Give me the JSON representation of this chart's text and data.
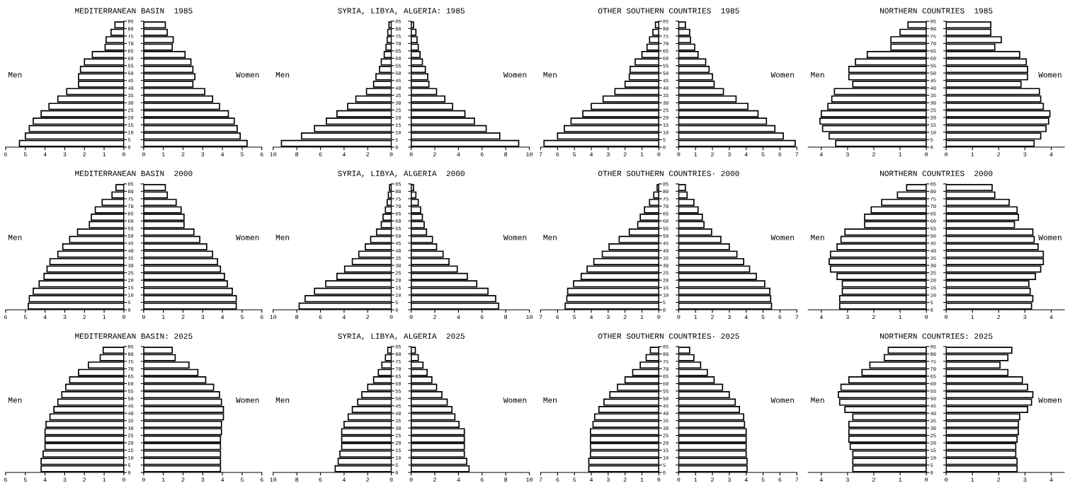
{
  "chart_data": [
    {
      "type": "bar",
      "orientation": "horizontal",
      "title": "MEDITERRANEAN BASIN  1985",
      "x": [
        82.5,
        77.5,
        72.5,
        67.5,
        62.5,
        57.5,
        52.5,
        47.5,
        42.5,
        37.5,
        32.5,
        27.5,
        22.5,
        17.5,
        12.5,
        7.5,
        2.5
      ],
      "ylim": [
        0,
        85
      ],
      "yticks": [
        0,
        5,
        10,
        15,
        20,
        25,
        30,
        35,
        40,
        45,
        50,
        55,
        60,
        65,
        70,
        75,
        80,
        85
      ],
      "xlim": [
        6,
        0
      ],
      "xticks": [
        6,
        5,
        4,
        3,
        2,
        1,
        0
      ],
      "series": [
        {
          "name": "Men",
          "color": "#ffffff",
          "values": [
            0.45,
            0.65,
            0.9,
            0.95,
            1.6,
            2.0,
            2.2,
            2.3,
            2.3,
            2.9,
            3.35,
            3.8,
            4.2,
            4.6,
            4.8,
            5.0,
            5.3
          ]
        }
      ]
    },
    {
      "type": "bar",
      "orientation": "horizontal",
      "x": [
        82.5,
        77.5,
        72.5,
        67.5,
        62.5,
        57.5,
        52.5,
        47.5,
        42.5,
        37.5,
        32.5,
        27.5,
        22.5,
        17.5,
        12.5,
        7.5,
        2.5
      ],
      "ylim": [
        0,
        85
      ],
      "yticks": [
        0,
        5,
        10,
        15,
        20,
        25,
        30,
        35,
        40,
        45,
        50,
        55,
        60,
        65,
        70,
        75,
        80,
        85
      ],
      "xlim": [
        0,
        6
      ],
      "xticks": [
        0,
        1,
        2,
        3,
        4,
        5,
        6
      ],
      "tick_labels": "x",
      "series": [
        {
          "name": "Women",
          "color": "#ffffff",
          "values": [
            1.1,
            1.2,
            1.5,
            1.45,
            2.1,
            2.4,
            2.5,
            2.6,
            2.5,
            3.1,
            3.5,
            3.85,
            4.3,
            4.6,
            4.75,
            4.9,
            5.25
          ]
        }
      ]
    },
    {
      "type": "bar",
      "orientation": "horizontal",
      "title": "SYRIA, LIBYA, ALGERIA: 1985",
      "x": [
        82.5,
        77.5,
        72.5,
        67.5,
        62.5,
        57.5,
        52.5,
        47.5,
        42.5,
        37.5,
        32.5,
        27.5,
        22.5,
        17.5,
        12.5,
        7.5,
        2.5
      ],
      "ylim": [
        0,
        85
      ],
      "yticks": [
        0,
        5,
        10,
        15,
        20,
        25,
        30,
        35,
        40,
        45,
        50,
        55,
        60,
        65,
        70,
        75,
        80,
        85
      ],
      "xlim": [
        10,
        0
      ],
      "xticks": [
        10,
        8,
        6,
        4,
        2,
        0
      ],
      "series": [
        {
          "name": "Men",
          "color": "#ffffff",
          "values": [
            0.2,
            0.3,
            0.35,
            0.45,
            0.6,
            0.85,
            1.0,
            1.3,
            1.5,
            2.1,
            3.0,
            3.7,
            4.6,
            5.5,
            6.5,
            7.6,
            9.3
          ]
        }
      ]
    },
    {
      "type": "bar",
      "orientation": "horizontal",
      "x": [
        82.5,
        77.5,
        72.5,
        67.5,
        62.5,
        57.5,
        52.5,
        47.5,
        42.5,
        37.5,
        32.5,
        27.5,
        22.5,
        17.5,
        12.5,
        7.5,
        2.5
      ],
      "ylim": [
        0,
        85
      ],
      "yticks": [
        0,
        5,
        10,
        15,
        20,
        25,
        30,
        35,
        40,
        45,
        50,
        55,
        60,
        65,
        70,
        75,
        80,
        85
      ],
      "xlim": [
        0,
        10
      ],
      "xticks": [
        0,
        2,
        4,
        6,
        8,
        10
      ],
      "tick_labels": "x",
      "series": [
        {
          "name": "Women",
          "color": "#ffffff",
          "values": [
            0.2,
            0.4,
            0.5,
            0.6,
            0.75,
            0.95,
            1.2,
            1.4,
            1.5,
            2.15,
            2.85,
            3.5,
            4.55,
            5.35,
            6.35,
            7.5,
            9.1
          ]
        }
      ]
    },
    {
      "type": "bar",
      "orientation": "horizontal",
      "title": "OTHER SOUTHERN COUNTRIES  1985",
      "x": [
        82.5,
        77.5,
        72.5,
        67.5,
        62.5,
        57.5,
        52.5,
        47.5,
        42.5,
        37.5,
        32.5,
        27.5,
        22.5,
        17.5,
        12.5,
        7.5,
        2.5
      ],
      "ylim": [
        0,
        85
      ],
      "yticks": [
        0,
        5,
        10,
        15,
        20,
        25,
        30,
        35,
        40,
        45,
        50,
        55,
        60,
        65,
        70,
        75,
        80,
        85
      ],
      "xlim": [
        7,
        0
      ],
      "xticks": [
        7,
        6,
        5,
        4,
        3,
        2,
        1,
        0
      ],
      "series": [
        {
          "name": "Men",
          "color": "#ffffff",
          "values": [
            0.2,
            0.35,
            0.55,
            0.7,
            1.0,
            1.4,
            1.7,
            1.75,
            2.0,
            2.6,
            3.3,
            4.0,
            4.5,
            5.2,
            5.6,
            6.0,
            6.8
          ]
        }
      ]
    },
    {
      "type": "bar",
      "orientation": "horizontal",
      "x": [
        82.5,
        77.5,
        72.5,
        67.5,
        62.5,
        57.5,
        52.5,
        47.5,
        42.5,
        37.5,
        32.5,
        27.5,
        22.5,
        17.5,
        12.5,
        7.5,
        2.5
      ],
      "ylim": [
        0,
        85
      ],
      "yticks": [
        0,
        5,
        10,
        15,
        20,
        25,
        30,
        35,
        40,
        45,
        50,
        55,
        60,
        65,
        70,
        75,
        80,
        85
      ],
      "xlim": [
        0,
        7
      ],
      "xticks": [
        0,
        1,
        2,
        3,
        4,
        5,
        6,
        7
      ],
      "tick_labels": "x",
      "series": [
        {
          "name": "Women",
          "color": "#ffffff",
          "values": [
            0.4,
            0.65,
            0.7,
            0.95,
            1.15,
            1.6,
            1.8,
            2.0,
            2.1,
            2.65,
            3.4,
            4.1,
            4.7,
            5.2,
            5.7,
            6.2,
            6.9
          ]
        }
      ]
    },
    {
      "type": "bar",
      "orientation": "horizontal",
      "title": "NORTHERN COUNTRIES  1985",
      "x": [
        82.5,
        77.5,
        72.5,
        67.5,
        62.5,
        57.5,
        52.5,
        47.5,
        42.5,
        37.5,
        32.5,
        27.5,
        22.5,
        17.5,
        12.5,
        7.5,
        2.5
      ],
      "ylim": [
        0,
        85
      ],
      "yticks": [
        0,
        5,
        10,
        15,
        20,
        25,
        30,
        35,
        40,
        45,
        50,
        55,
        60,
        65,
        70,
        75,
        80,
        85
      ],
      "xlim": [
        4.5,
        0
      ],
      "xticks": [
        4,
        3,
        2,
        1,
        0
      ],
      "series": [
        {
          "name": "Men",
          "color": "#ffffff",
          "values": [
            0.7,
            1.0,
            1.35,
            1.35,
            2.25,
            2.7,
            2.95,
            2.95,
            2.8,
            3.5,
            3.6,
            3.75,
            4.0,
            4.05,
            3.95,
            3.7,
            3.45
          ]
        }
      ]
    },
    {
      "type": "bar",
      "orientation": "horizontal",
      "x": [
        82.5,
        77.5,
        72.5,
        67.5,
        62.5,
        57.5,
        52.5,
        47.5,
        42.5,
        37.5,
        32.5,
        27.5,
        22.5,
        17.5,
        12.5,
        7.5,
        2.5
      ],
      "ylim": [
        0,
        85
      ],
      "yticks": [
        0,
        5,
        10,
        15,
        20,
        25,
        30,
        35,
        40,
        45,
        50,
        55,
        60,
        65,
        70,
        75,
        80,
        85
      ],
      "xlim": [
        0,
        4.5
      ],
      "xticks": [
        0,
        1,
        2,
        3,
        4
      ],
      "tick_labels": "x",
      "series": [
        {
          "name": "Women",
          "color": "#ffffff",
          "values": [
            1.7,
            1.7,
            2.1,
            1.85,
            2.8,
            3.05,
            3.1,
            3.1,
            2.85,
            3.55,
            3.6,
            3.7,
            3.95,
            3.9,
            3.8,
            3.6,
            3.35
          ]
        }
      ]
    },
    {
      "type": "bar",
      "orientation": "horizontal",
      "title": "MEDITERRANEAN BASIN  2000",
      "x": [
        82.5,
        77.5,
        72.5,
        67.5,
        62.5,
        57.5,
        52.5,
        47.5,
        42.5,
        37.5,
        32.5,
        27.5,
        22.5,
        17.5,
        12.5,
        7.5,
        2.5
      ],
      "ylim": [
        0,
        85
      ],
      "yticks": [
        0,
        5,
        10,
        15,
        20,
        25,
        30,
        35,
        40,
        45,
        50,
        55,
        60,
        65,
        70,
        75,
        80,
        85
      ],
      "xlim": [
        6,
        0
      ],
      "xticks": [
        6,
        5,
        4,
        3,
        2,
        1,
        0
      ],
      "series": [
        {
          "name": "Men",
          "color": "#ffffff",
          "values": [
            0.4,
            0.6,
            1.1,
            1.45,
            1.65,
            1.75,
            2.35,
            2.75,
            3.1,
            3.35,
            3.75,
            3.9,
            4.05,
            4.3,
            4.6,
            4.8,
            4.85
          ]
        }
      ]
    },
    {
      "type": "bar",
      "orientation": "horizontal",
      "x": [
        82.5,
        77.5,
        72.5,
        67.5,
        62.5,
        57.5,
        52.5,
        47.5,
        42.5,
        37.5,
        32.5,
        27.5,
        22.5,
        17.5,
        12.5,
        7.5,
        2.5
      ],
      "ylim": [
        0,
        85
      ],
      "yticks": [
        0,
        5,
        10,
        15,
        20,
        25,
        30,
        35,
        40,
        45,
        50,
        55,
        60,
        65,
        70,
        75,
        80,
        85
      ],
      "xlim": [
        0,
        6
      ],
      "xticks": [
        0,
        1,
        2,
        3,
        4,
        5,
        6
      ],
      "tick_labels": "x",
      "series": [
        {
          "name": "Women",
          "color": "#ffffff",
          "values": [
            1.1,
            1.2,
            1.65,
            1.9,
            2.05,
            2.05,
            2.55,
            2.85,
            3.2,
            3.5,
            3.75,
            3.9,
            4.1,
            4.25,
            4.5,
            4.7,
            4.7
          ]
        }
      ]
    },
    {
      "type": "bar",
      "orientation": "horizontal",
      "title": "SYRIA, LIBYA, ALGERIA  2000",
      "x": [
        82.5,
        77.5,
        72.5,
        67.5,
        62.5,
        57.5,
        52.5,
        47.5,
        42.5,
        37.5,
        32.5,
        27.5,
        22.5,
        17.5,
        12.5,
        7.5,
        2.5
      ],
      "ylim": [
        0,
        85
      ],
      "yticks": [
        0,
        5,
        10,
        15,
        20,
        25,
        30,
        35,
        40,
        45,
        50,
        55,
        60,
        65,
        70,
        75,
        80,
        85
      ],
      "xlim": [
        10,
        0
      ],
      "xticks": [
        10,
        8,
        6,
        4,
        2,
        0
      ],
      "series": [
        {
          "name": "Men",
          "color": "#ffffff",
          "values": [
            0.15,
            0.25,
            0.35,
            0.5,
            0.7,
            0.85,
            1.25,
            1.75,
            2.2,
            2.75,
            3.3,
            3.95,
            4.6,
            5.55,
            6.5,
            7.3,
            7.8
          ]
        }
      ]
    },
    {
      "type": "bar",
      "orientation": "horizontal",
      "x": [
        82.5,
        77.5,
        72.5,
        67.5,
        62.5,
        57.5,
        52.5,
        47.5,
        42.5,
        37.5,
        32.5,
        27.5,
        22.5,
        17.5,
        12.5,
        7.5,
        2.5
      ],
      "ylim": [
        0,
        85
      ],
      "yticks": [
        0,
        5,
        10,
        15,
        20,
        25,
        30,
        35,
        40,
        45,
        50,
        55,
        60,
        65,
        70,
        75,
        80,
        85
      ],
      "xlim": [
        0,
        10
      ],
      "xticks": [
        0,
        2,
        4,
        6,
        8,
        10
      ],
      "tick_labels": "x",
      "series": [
        {
          "name": "Women",
          "color": "#ffffff",
          "values": [
            0.2,
            0.4,
            0.6,
            0.8,
            0.95,
            1.1,
            1.3,
            1.8,
            2.15,
            2.7,
            3.2,
            3.9,
            4.75,
            5.55,
            6.5,
            7.15,
            7.4
          ]
        }
      ]
    },
    {
      "type": "bar",
      "orientation": "horizontal",
      "title": "OTHER SOUTHERN COUNTRIES· 2000",
      "x": [
        82.5,
        77.5,
        72.5,
        67.5,
        62.5,
        57.5,
        52.5,
        47.5,
        42.5,
        37.5,
        32.5,
        27.5,
        22.5,
        17.5,
        12.5,
        7.5,
        2.5
      ],
      "ylim": [
        0,
        85
      ],
      "yticks": [
        0,
        5,
        10,
        15,
        20,
        25,
        30,
        35,
        40,
        45,
        50,
        55,
        60,
        65,
        70,
        75,
        80,
        85
      ],
      "xlim": [
        7,
        0
      ],
      "xticks": [
        7,
        6,
        5,
        4,
        3,
        2,
        1,
        0
      ],
      "series": [
        {
          "name": "Men",
          "color": "#ffffff",
          "values": [
            0.1,
            0.3,
            0.55,
            0.85,
            1.1,
            1.25,
            1.75,
            2.35,
            2.95,
            3.35,
            3.85,
            4.25,
            4.6,
            5.05,
            5.4,
            5.45,
            5.55
          ]
        }
      ]
    },
    {
      "type": "bar",
      "orientation": "horizontal",
      "x": [
        82.5,
        77.5,
        72.5,
        67.5,
        62.5,
        57.5,
        52.5,
        47.5,
        42.5,
        37.5,
        32.5,
        27.5,
        22.5,
        17.5,
        12.5,
        7.5,
        2.5
      ],
      "ylim": [
        0,
        85
      ],
      "yticks": [
        0,
        5,
        10,
        15,
        20,
        25,
        30,
        35,
        40,
        45,
        50,
        55,
        60,
        65,
        70,
        75,
        80,
        85
      ],
      "xlim": [
        0,
        7
      ],
      "xticks": [
        0,
        1,
        2,
        3,
        4,
        5,
        6,
        7
      ],
      "tick_labels": "x",
      "series": [
        {
          "name": "Women",
          "color": "#ffffff",
          "values": [
            0.4,
            0.5,
            0.9,
            1.15,
            1.4,
            1.5,
            1.95,
            2.5,
            3.0,
            3.45,
            3.85,
            4.2,
            4.6,
            5.1,
            5.4,
            5.45,
            5.5
          ]
        }
      ]
    },
    {
      "type": "bar",
      "orientation": "horizontal",
      "title": "NORTHERN COUNTRIES  2000",
      "x": [
        82.5,
        77.5,
        72.5,
        67.5,
        62.5,
        57.5,
        52.5,
        47.5,
        42.5,
        37.5,
        32.5,
        27.5,
        22.5,
        17.5,
        12.5,
        7.5,
        2.5
      ],
      "ylim": [
        0,
        85
      ],
      "yticks": [
        0,
        5,
        10,
        15,
        20,
        25,
        30,
        35,
        40,
        45,
        50,
        55,
        60,
        65,
        70,
        75,
        80,
        85
      ],
      "xlim": [
        4.5,
        0
      ],
      "xticks": [
        4,
        3,
        2,
        1,
        0
      ],
      "series": [
        {
          "name": "Men",
          "color": "#ffffff",
          "values": [
            0.75,
            1.1,
            1.7,
            2.1,
            2.35,
            2.35,
            3.1,
            3.25,
            3.4,
            3.65,
            3.7,
            3.65,
            3.4,
            3.2,
            3.2,
            3.3,
            3.3
          ]
        }
      ]
    },
    {
      "type": "bar",
      "orientation": "horizontal",
      "x": [
        82.5,
        77.5,
        72.5,
        67.5,
        62.5,
        57.5,
        52.5,
        47.5,
        42.5,
        37.5,
        32.5,
        27.5,
        22.5,
        17.5,
        12.5,
        7.5,
        2.5
      ],
      "ylim": [
        0,
        85
      ],
      "yticks": [
        0,
        5,
        10,
        15,
        20,
        25,
        30,
        35,
        40,
        45,
        50,
        55,
        60,
        65,
        70,
        75,
        80,
        85
      ],
      "xlim": [
        0,
        4.5
      ],
      "xticks": [
        0,
        1,
        2,
        3,
        4
      ],
      "tick_labels": "x",
      "series": [
        {
          "name": "Women",
          "color": "#ffffff",
          "values": [
            1.75,
            1.85,
            2.4,
            2.7,
            2.75,
            2.6,
            3.3,
            3.35,
            3.5,
            3.7,
            3.7,
            3.6,
            3.4,
            3.15,
            3.2,
            3.3,
            3.25
          ]
        }
      ]
    },
    {
      "type": "bar",
      "orientation": "horizontal",
      "title": "MEDITERRANEAN BASIN: 2025",
      "x": [
        82.5,
        77.5,
        72.5,
        67.5,
        62.5,
        57.5,
        52.5,
        47.5,
        42.5,
        37.5,
        32.5,
        27.5,
        22.5,
        17.5,
        12.5,
        7.5,
        2.5
      ],
      "ylim": [
        0,
        85
      ],
      "yticks": [
        0,
        5,
        10,
        15,
        20,
        25,
        30,
        35,
        40,
        45,
        50,
        55,
        60,
        65,
        70,
        75,
        80,
        85
      ],
      "xlim": [
        6,
        0
      ],
      "xticks": [
        6,
        5,
        4,
        3,
        2,
        1,
        0
      ],
      "series": [
        {
          "name": "Men",
          "color": "#ffffff",
          "values": [
            1.05,
            1.2,
            1.8,
            2.3,
            2.75,
            2.95,
            3.15,
            3.35,
            3.55,
            3.75,
            3.95,
            4.0,
            4.0,
            4.0,
            4.1,
            4.2,
            4.2
          ]
        }
      ]
    },
    {
      "type": "bar",
      "orientation": "horizontal",
      "x": [
        82.5,
        77.5,
        72.5,
        67.5,
        62.5,
        57.5,
        52.5,
        47.5,
        42.5,
        37.5,
        32.5,
        27.5,
        22.5,
        17.5,
        12.5,
        7.5,
        2.5
      ],
      "ylim": [
        0,
        85
      ],
      "yticks": [
        0,
        5,
        10,
        15,
        20,
        25,
        30,
        35,
        40,
        45,
        50,
        55,
        60,
        65,
        70,
        75,
        80,
        85
      ],
      "xlim": [
        0,
        6
      ],
      "xticks": [
        0,
        1,
        2,
        3,
        4,
        5,
        6
      ],
      "tick_labels": "x",
      "series": [
        {
          "name": "Women",
          "color": "#ffffff",
          "values": [
            1.45,
            1.6,
            2.3,
            2.75,
            3.15,
            3.55,
            3.85,
            3.95,
            4.05,
            4.05,
            3.95,
            3.95,
            3.9,
            3.9,
            3.9,
            3.9,
            3.9
          ]
        }
      ]
    },
    {
      "type": "bar",
      "orientation": "horizontal",
      "title": "SYRIA, LIBYA, ALGERIA  2025",
      "x": [
        82.5,
        77.5,
        72.5,
        67.5,
        62.5,
        57.5,
        52.5,
        47.5,
        42.5,
        37.5,
        32.5,
        27.5,
        22.5,
        17.5,
        12.5,
        7.5,
        2.5
      ],
      "ylim": [
        0,
        85
      ],
      "yticks": [
        0,
        5,
        10,
        15,
        20,
        25,
        30,
        35,
        40,
        45,
        50,
        55,
        60,
        65,
        70,
        75,
        80,
        85
      ],
      "xlim": [
        10,
        0
      ],
      "xticks": [
        10,
        8,
        6,
        4,
        2,
        0
      ],
      "series": [
        {
          "name": "Men",
          "color": "#ffffff",
          "values": [
            0.3,
            0.5,
            0.8,
            1.1,
            1.5,
            2.0,
            2.5,
            2.85,
            3.3,
            3.65,
            4.0,
            4.2,
            4.2,
            4.2,
            4.35,
            4.5,
            4.75
          ]
        }
      ]
    },
    {
      "type": "bar",
      "orientation": "horizontal",
      "x": [
        82.5,
        77.5,
        72.5,
        67.5,
        62.5,
        57.5,
        52.5,
        47.5,
        42.5,
        37.5,
        32.5,
        27.5,
        22.5,
        17.5,
        12.5,
        7.5,
        2.5
      ],
      "ylim": [
        0,
        85
      ],
      "yticks": [
        0,
        5,
        10,
        15,
        20,
        25,
        30,
        35,
        40,
        45,
        50,
        55,
        60,
        65,
        70,
        75,
        80,
        85
      ],
      "xlim": [
        0,
        10
      ],
      "xticks": [
        0,
        2,
        4,
        6,
        8,
        10
      ],
      "tick_labels": "x",
      "series": [
        {
          "name": "Women",
          "color": "#ffffff",
          "values": [
            0.35,
            0.6,
            1.0,
            1.35,
            1.75,
            2.15,
            2.6,
            3.05,
            3.45,
            3.7,
            4.05,
            4.5,
            4.5,
            4.5,
            4.5,
            4.7,
            4.9
          ]
        }
      ]
    },
    {
      "type": "bar",
      "orientation": "horizontal",
      "title": "OTHER SOUTHERN COUNTRIES· 2025",
      "x": [
        82.5,
        77.5,
        72.5,
        67.5,
        62.5,
        57.5,
        52.5,
        47.5,
        42.5,
        37.5,
        32.5,
        27.5,
        22.5,
        17.5,
        12.5,
        7.5,
        2.5
      ],
      "ylim": [
        0,
        85
      ],
      "yticks": [
        0,
        5,
        10,
        15,
        20,
        25,
        30,
        35,
        40,
        45,
        50,
        55,
        60,
        65,
        70,
        75,
        80,
        85
      ],
      "xlim": [
        7,
        0
      ],
      "xticks": [
        7,
        6,
        5,
        4,
        3,
        2,
        1,
        0
      ],
      "series": [
        {
          "name": "Men",
          "color": "#ffffff",
          "values": [
            0.5,
            0.75,
            1.1,
            1.55,
            2.0,
            2.45,
            2.9,
            3.25,
            3.55,
            3.8,
            3.9,
            4.05,
            4.05,
            4.05,
            4.05,
            4.15,
            4.15
          ]
        }
      ]
    },
    {
      "type": "bar",
      "orientation": "horizontal",
      "x": [
        82.5,
        77.5,
        72.5,
        67.5,
        62.5,
        57.5,
        52.5,
        47.5,
        42.5,
        37.5,
        32.5,
        27.5,
        22.5,
        17.5,
        12.5,
        7.5,
        2.5
      ],
      "ylim": [
        0,
        85
      ],
      "yticks": [
        0,
        5,
        10,
        15,
        20,
        25,
        30,
        35,
        40,
        45,
        50,
        55,
        60,
        65,
        70,
        75,
        80,
        85
      ],
      "xlim": [
        0,
        7
      ],
      "xticks": [
        0,
        1,
        2,
        3,
        4,
        5,
        6,
        7
      ],
      "tick_labels": "x",
      "series": [
        {
          "name": "Women",
          "color": "#ffffff",
          "values": [
            0.65,
            0.9,
            1.3,
            1.7,
            2.1,
            2.6,
            3.0,
            3.35,
            3.6,
            3.85,
            3.9,
            4.0,
            4.0,
            4.0,
            4.0,
            4.05,
            4.05
          ]
        }
      ]
    },
    {
      "type": "bar",
      "orientation": "horizontal",
      "title": "NORTHERN COUNTRIES: 2025",
      "x": [
        82.5,
        77.5,
        72.5,
        67.5,
        62.5,
        57.5,
        52.5,
        47.5,
        42.5,
        37.5,
        32.5,
        27.5,
        22.5,
        17.5,
        12.5,
        7.5,
        2.5
      ],
      "ylim": [
        0,
        85
      ],
      "yticks": [
        0,
        5,
        10,
        15,
        20,
        25,
        30,
        35,
        40,
        45,
        50,
        55,
        60,
        65,
        70,
        75,
        80,
        85
      ],
      "xlim": [
        4.5,
        0
      ],
      "xticks": [
        4,
        3,
        2,
        1,
        0
      ],
      "series": [
        {
          "name": "Men",
          "color": "#ffffff",
          "values": [
            1.45,
            1.6,
            2.15,
            2.45,
            2.95,
            3.25,
            3.35,
            3.3,
            3.1,
            2.8,
            2.95,
            2.95,
            2.95,
            2.9,
            2.8,
            2.8,
            2.8
          ]
        }
      ]
    },
    {
      "type": "bar",
      "orientation": "horizontal",
      "x": [
        82.5,
        77.5,
        72.5,
        67.5,
        62.5,
        57.5,
        52.5,
        47.5,
        42.5,
        37.5,
        32.5,
        27.5,
        22.5,
        17.5,
        12.5,
        7.5,
        2.5
      ],
      "ylim": [
        0,
        85
      ],
      "yticks": [
        0,
        5,
        10,
        15,
        20,
        25,
        30,
        35,
        40,
        45,
        50,
        55,
        60,
        65,
        70,
        75,
        80,
        85
      ],
      "xlim": [
        0,
        4.5
      ],
      "xticks": [
        0,
        1,
        2,
        3,
        4
      ],
      "tick_labels": "x",
      "series": [
        {
          "name": "Women",
          "color": "#ffffff",
          "values": [
            2.5,
            2.35,
            2.05,
            2.35,
            2.9,
            3.1,
            3.3,
            3.25,
            3.1,
            2.8,
            2.75,
            2.75,
            2.7,
            2.65,
            2.65,
            2.7,
            2.7
          ]
        }
      ]
    }
  ]
}
